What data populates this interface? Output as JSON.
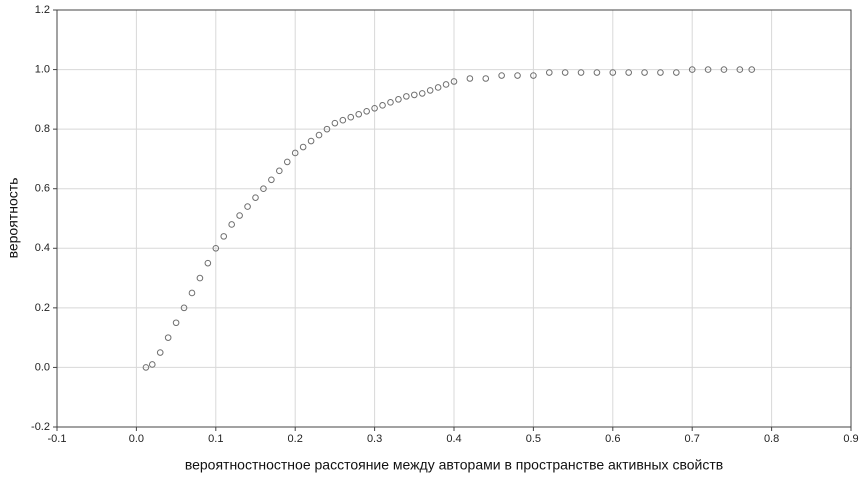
{
  "chart_data": {
    "type": "scatter",
    "xlabel": "вероятностностное расстояние между авторами в пространстве активных свойств",
    "ylabel": "вероятность",
    "xlim": [
      -0.1,
      0.9
    ],
    "ylim": [
      -0.2,
      1.2
    ],
    "xticks": [
      -0.1,
      {
        "value": 0,
        "label": "0.0"
      },
      0.1,
      0.2,
      0.3,
      0.4,
      0.5,
      0.6,
      0.7,
      0.8,
      0.9
    ],
    "yticks": [
      -0.2,
      {
        "value": 0,
        "label": "0.0"
      },
      0.2,
      0.4,
      0.6,
      0.8,
      {
        "value": 1,
        "label": "1.0"
      },
      1.2
    ],
    "grid": true,
    "color": "#707070",
    "x": [
      0.012,
      0.02,
      0.03,
      0.04,
      0.05,
      0.06,
      0.07,
      0.08,
      0.09,
      0.1,
      0.11,
      0.12,
      0.13,
      0.14,
      0.15,
      0.16,
      0.17,
      0.18,
      0.19,
      0.2,
      0.21,
      0.22,
      0.23,
      0.24,
      0.25,
      0.26,
      0.27,
      0.28,
      0.29,
      0.3,
      0.31,
      0.32,
      0.33,
      0.34,
      0.35,
      0.36,
      0.37,
      0.38,
      0.39,
      0.4,
      0.42,
      0.44,
      0.46,
      0.48,
      0.5,
      0.52,
      0.54,
      0.56,
      0.58,
      0.6,
      0.62,
      0.64,
      0.66,
      0.68,
      0.7,
      0.72,
      0.74,
      0.76,
      0.775
    ],
    "values": [
      0,
      0.01,
      0.05,
      0.1,
      0.15,
      0.2,
      0.25,
      0.3,
      0.35,
      0.4,
      0.44,
      0.48,
      0.51,
      0.54,
      0.57,
      0.6,
      0.63,
      0.66,
      0.69,
      0.72,
      0.74,
      0.76,
      0.78,
      0.8,
      0.82,
      0.83,
      0.84,
      0.85,
      0.86,
      0.87,
      0.88,
      0.89,
      0.9,
      0.91,
      0.915,
      0.92,
      0.93,
      0.94,
      0.95,
      0.96,
      0.97,
      0.97,
      0.98,
      0.98,
      0.98,
      0.99,
      0.99,
      0.99,
      0.99,
      0.99,
      0.99,
      0.99,
      0.99,
      0.99,
      1.0,
      1.0,
      1.0,
      1.0,
      1.0
    ]
  }
}
